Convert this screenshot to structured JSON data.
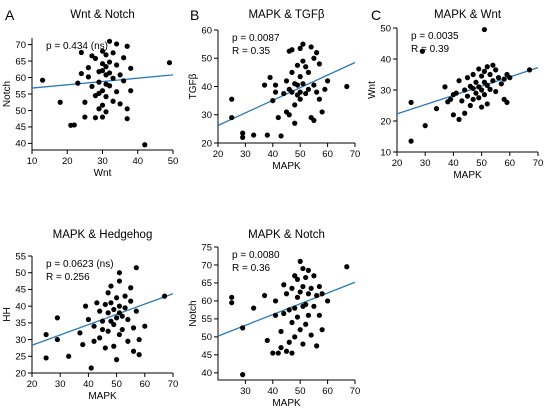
{
  "chart_data": [
    {
      "type": "scatter",
      "panel_letter": "A",
      "title": "Wnt & Notch",
      "xlabel": "Wnt",
      "ylabel": "Notch",
      "xlim": [
        10,
        50
      ],
      "ylim": [
        38,
        72
      ],
      "xticks": [
        10,
        20,
        30,
        40,
        50
      ],
      "yticks": [
        40,
        45,
        50,
        55,
        60,
        65,
        70
      ],
      "stats": [
        "p = 0.434 (ns)"
      ],
      "fit": {
        "x": [
          10,
          50
        ],
        "y": [
          56.8,
          60.8
        ]
      },
      "points": [
        [
          13,
          59.2
        ],
        [
          18,
          52.5
        ],
        [
          21,
          45.5
        ],
        [
          22,
          45.6
        ],
        [
          23,
          58.3
        ],
        [
          24,
          67.6
        ],
        [
          24,
          61.2
        ],
        [
          25,
          48
        ],
        [
          25,
          52.5
        ],
        [
          26,
          63
        ],
        [
          26,
          60.2
        ],
        [
          27,
          66.6
        ],
        [
          27,
          57.3
        ],
        [
          28,
          54.5
        ],
        [
          28,
          47.8
        ],
        [
          28,
          65.8
        ],
        [
          29,
          61.8
        ],
        [
          29,
          58.6
        ],
        [
          29,
          55.2
        ],
        [
          29,
          50.5
        ],
        [
          30,
          68
        ],
        [
          30,
          64.2
        ],
        [
          30,
          62.1
        ],
        [
          30,
          56
        ],
        [
          30,
          51.6
        ],
        [
          30,
          48
        ],
        [
          31,
          66.9
        ],
        [
          31,
          63.3
        ],
        [
          31,
          60.8
        ],
        [
          31,
          58
        ],
        [
          31,
          54.2
        ],
        [
          31,
          49.6
        ],
        [
          32,
          71
        ],
        [
          32,
          64.7
        ],
        [
          32,
          61.4
        ],
        [
          32,
          57.5
        ],
        [
          33,
          67.5
        ],
        [
          33,
          59.8
        ],
        [
          33,
          52.8
        ],
        [
          34,
          70.2
        ],
        [
          34,
          63.8
        ],
        [
          34,
          55.7
        ],
        [
          35,
          60.8
        ],
        [
          35,
          52
        ],
        [
          36,
          66
        ],
        [
          36,
          59
        ],
        [
          37,
          69.5
        ],
        [
          37,
          50.5
        ],
        [
          37,
          47.5
        ],
        [
          38,
          62.8
        ],
        [
          38,
          56
        ],
        [
          42,
          39.6
        ],
        [
          49,
          64.5
        ]
      ]
    },
    {
      "type": "scatter",
      "panel_letter": "B",
      "title": "MAPK & TGFβ",
      "xlabel": "MAPK",
      "ylabel": "TGFβ",
      "xlim": [
        20,
        70
      ],
      "ylim": [
        20,
        60
      ],
      "xticks": [
        20,
        30,
        40,
        50,
        60,
        70
      ],
      "yticks": [
        20,
        30,
        40,
        50,
        60
      ],
      "stats": [
        "p = 0.0087",
        "R = 0.35"
      ],
      "fit": {
        "x": [
          20,
          70
        ],
        "y": [
          26.2,
          48.5
        ]
      },
      "points": [
        [
          25,
          35.5
        ],
        [
          25,
          29
        ],
        [
          29,
          23.5
        ],
        [
          29,
          22
        ],
        [
          33,
          22.8
        ],
        [
          37,
          40.5
        ],
        [
          38,
          22.8
        ],
        [
          39,
          43.2
        ],
        [
          40,
          35
        ],
        [
          41,
          40.5
        ],
        [
          41,
          38
        ],
        [
          42,
          29
        ],
        [
          43,
          22.5
        ],
        [
          44,
          37.5
        ],
        [
          45,
          42
        ],
        [
          45,
          31
        ],
        [
          46,
          52.5
        ],
        [
          46,
          39
        ],
        [
          46,
          30
        ],
        [
          47,
          53
        ],
        [
          47,
          45
        ],
        [
          47,
          38
        ],
        [
          48,
          41
        ],
        [
          48,
          33.5
        ],
        [
          48,
          27
        ],
        [
          49,
          47.5
        ],
        [
          49,
          40.5
        ],
        [
          49,
          37
        ],
        [
          50,
          53.5
        ],
        [
          50,
          43.5
        ],
        [
          50,
          38
        ],
        [
          50,
          35.5
        ],
        [
          51,
          55
        ],
        [
          51,
          49
        ],
        [
          51,
          41
        ],
        [
          52,
          47
        ],
        [
          52,
          37.5
        ],
        [
          53,
          45
        ],
        [
          53,
          39
        ],
        [
          54,
          54
        ],
        [
          54,
          29
        ],
        [
          55,
          50
        ],
        [
          55,
          40.5
        ],
        [
          55,
          28
        ],
        [
          56,
          52
        ],
        [
          56,
          38
        ],
        [
          57,
          48
        ],
        [
          57,
          35.5
        ],
        [
          58,
          31
        ],
        [
          59,
          39
        ],
        [
          60,
          42
        ],
        [
          67,
          40
        ]
      ]
    },
    {
      "type": "scatter",
      "panel_letter": "C",
      "title": "MAPK & Wnt",
      "xlabel": "MAPK",
      "ylabel": "Wnt",
      "xlim": [
        20,
        70
      ],
      "ylim": [
        10,
        50
      ],
      "xticks": [
        20,
        30,
        40,
        50,
        60,
        70
      ],
      "yticks": [
        10,
        20,
        30,
        40,
        50
      ],
      "stats": [
        "p = 0.0035",
        "R = 0.39"
      ],
      "fit": {
        "x": [
          20,
          70
        ],
        "y": [
          22.3,
          37.2
        ]
      },
      "points": [
        [
          25,
          26
        ],
        [
          25,
          13.5
        ],
        [
          29,
          42.5
        ],
        [
          30,
          18.5
        ],
        [
          34,
          24
        ],
        [
          37,
          31
        ],
        [
          38,
          26.2
        ],
        [
          39,
          27
        ],
        [
          40,
          28.5
        ],
        [
          40,
          22
        ],
        [
          41,
          29
        ],
        [
          42,
          33
        ],
        [
          42,
          20.5
        ],
        [
          43,
          26.5
        ],
        [
          44,
          30
        ],
        [
          44,
          22.5
        ],
        [
          45,
          34
        ],
        [
          45,
          28
        ],
        [
          46,
          31.2
        ],
        [
          46,
          25
        ],
        [
          47,
          35
        ],
        [
          47,
          30.5
        ],
        [
          47,
          27
        ],
        [
          48,
          32.5
        ],
        [
          48,
          29
        ],
        [
          49,
          36.8
        ],
        [
          49,
          31
        ],
        [
          49,
          27.5
        ],
        [
          50,
          34.5
        ],
        [
          50,
          30
        ],
        [
          50,
          24.5
        ],
        [
          51,
          49.5
        ],
        [
          51,
          36
        ],
        [
          51,
          32.5
        ],
        [
          51,
          28.5
        ],
        [
          52,
          37.5
        ],
        [
          52,
          31.5
        ],
        [
          52,
          25.5
        ],
        [
          53,
          35
        ],
        [
          53,
          30.2
        ],
        [
          54,
          38
        ],
        [
          54,
          33
        ],
        [
          55,
          36.5
        ],
        [
          55,
          29.5
        ],
        [
          56,
          34
        ],
        [
          57,
          32
        ],
        [
          58,
          33.5
        ],
        [
          58,
          27
        ],
        [
          59,
          35
        ],
        [
          59,
          26
        ],
        [
          60,
          34
        ],
        [
          67,
          36.5
        ]
      ]
    },
    {
      "type": "scatter",
      "panel_letter": "",
      "title": "MAPK & Hedgehog",
      "xlabel": "MAPK",
      "ylabel": "HH",
      "xlim": [
        20,
        70
      ],
      "ylim": [
        20,
        55
      ],
      "xticks": [
        20,
        30,
        40,
        50,
        60,
        70
      ],
      "yticks": [
        20,
        25,
        30,
        35,
        40,
        45,
        50,
        55
      ],
      "stats": [
        "p = 0.0623 (ns)",
        "R = 0.256"
      ],
      "fit": {
        "x": [
          20,
          70
        ],
        "y": [
          28.3,
          43.7
        ]
      },
      "points": [
        [
          25,
          31.5
        ],
        [
          25,
          24.5
        ],
        [
          29,
          36.5
        ],
        [
          29,
          30
        ],
        [
          33,
          25
        ],
        [
          37,
          32
        ],
        [
          38,
          28.5
        ],
        [
          39,
          40
        ],
        [
          40,
          36
        ],
        [
          41,
          21.5
        ],
        [
          42,
          34
        ],
        [
          42,
          29.5
        ],
        [
          43,
          41
        ],
        [
          44,
          38.5
        ],
        [
          44,
          30.5
        ],
        [
          45,
          35.5
        ],
        [
          45,
          33
        ],
        [
          46,
          40.5
        ],
        [
          46,
          27.5
        ],
        [
          47,
          44
        ],
        [
          47,
          38
        ],
        [
          47,
          32.5
        ],
        [
          48,
          46
        ],
        [
          48,
          41
        ],
        [
          48,
          35.5
        ],
        [
          49,
          39
        ],
        [
          49,
          34.5
        ],
        [
          49,
          28
        ],
        [
          50,
          42.5
        ],
        [
          50,
          36.5
        ],
        [
          50,
          24
        ],
        [
          51,
          50
        ],
        [
          51,
          47.5
        ],
        [
          51,
          40
        ],
        [
          51,
          38
        ],
        [
          51,
          31.5
        ],
        [
          52,
          37
        ],
        [
          52,
          33
        ],
        [
          53,
          43
        ],
        [
          53,
          39.5
        ],
        [
          54,
          36
        ],
        [
          54,
          29.5
        ],
        [
          55,
          45.5
        ],
        [
          55,
          41.5
        ],
        [
          56,
          33.5
        ],
        [
          56,
          26.5
        ],
        [
          57,
          51.5
        ],
        [
          57,
          38.5
        ],
        [
          58,
          30
        ],
        [
          58,
          25.5
        ],
        [
          60,
          34
        ],
        [
          67,
          43
        ]
      ]
    },
    {
      "type": "scatter",
      "panel_letter": "",
      "title": "MAPK & Notch",
      "xlabel": "MAPK",
      "ylabel": "Notch",
      "xlim": [
        20,
        70
      ],
      "ylim": [
        38,
        75
      ],
      "xticks": [
        30,
        40,
        50,
        60,
        70
      ],
      "yticks": [
        40,
        45,
        50,
        55,
        60,
        65,
        70,
        75
      ],
      "stats": [
        "p = 0.0080",
        "R = 0.36"
      ],
      "fit": {
        "x": [
          20,
          70
        ],
        "y": [
          50.2,
          65.2
        ]
      },
      "points": [
        [
          25,
          61
        ],
        [
          25,
          59.5
        ],
        [
          29,
          52.5
        ],
        [
          29,
          39.5
        ],
        [
          33,
          58
        ],
        [
          37,
          61.5
        ],
        [
          38,
          49
        ],
        [
          40,
          45.5
        ],
        [
          41,
          60
        ],
        [
          41,
          56
        ],
        [
          42,
          45.5
        ],
        [
          43,
          51.5
        ],
        [
          43,
          47
        ],
        [
          44,
          64.5
        ],
        [
          44,
          56.5
        ],
        [
          45,
          62
        ],
        [
          45,
          46
        ],
        [
          46,
          57.5
        ],
        [
          46,
          48.5
        ],
        [
          47,
          63.5
        ],
        [
          47,
          54
        ],
        [
          47,
          45.5
        ],
        [
          48,
          67
        ],
        [
          48,
          58
        ],
        [
          48,
          50
        ],
        [
          49,
          66
        ],
        [
          49,
          61
        ],
        [
          49,
          55.5
        ],
        [
          50,
          71
        ],
        [
          50,
          62.5
        ],
        [
          50,
          52
        ],
        [
          51,
          69
        ],
        [
          51,
          64
        ],
        [
          51,
          58.5
        ],
        [
          51,
          48
        ],
        [
          52,
          66.5
        ],
        [
          52,
          59
        ],
        [
          52,
          53.5
        ],
        [
          53,
          68.5
        ],
        [
          53,
          62
        ],
        [
          53,
          56
        ],
        [
          54,
          63.5
        ],
        [
          54,
          50.5
        ],
        [
          55,
          67
        ],
        [
          55,
          58.5
        ],
        [
          56,
          61.5
        ],
        [
          56,
          47.5
        ],
        [
          57,
          64
        ],
        [
          57,
          56
        ],
        [
          58,
          62
        ],
        [
          58,
          52
        ],
        [
          60,
          60
        ],
        [
          67,
          69.5
        ]
      ]
    }
  ]
}
